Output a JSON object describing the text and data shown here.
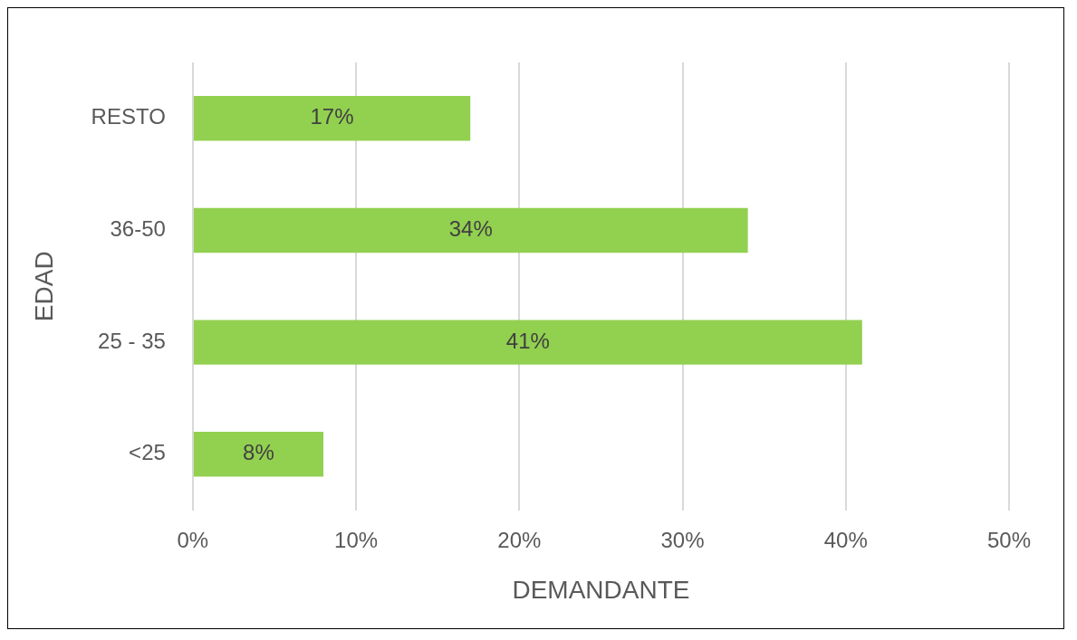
{
  "chart_data": {
    "type": "bar",
    "orientation": "horizontal",
    "xlabel": "DEMANDANTE",
    "ylabel": "EDAD",
    "categories": [
      "RESTO",
      "36-50",
      "25 - 35",
      "<25"
    ],
    "values": [
      17,
      34,
      41,
      8
    ],
    "color": "#92d050",
    "value_labels": [
      "17%",
      "34%",
      "41%",
      "8%"
    ],
    "xlim": [
      0,
      50
    ],
    "xticks": [
      {
        "value": 0,
        "label": "0%"
      },
      {
        "value": 10,
        "label": "10%"
      },
      {
        "value": 20,
        "label": "20%"
      },
      {
        "value": 30,
        "label": "30%"
      },
      {
        "value": 40,
        "label": "40%"
      },
      {
        "value": 50,
        "label": "50%"
      }
    ],
    "grid": "x",
    "legend": false
  }
}
